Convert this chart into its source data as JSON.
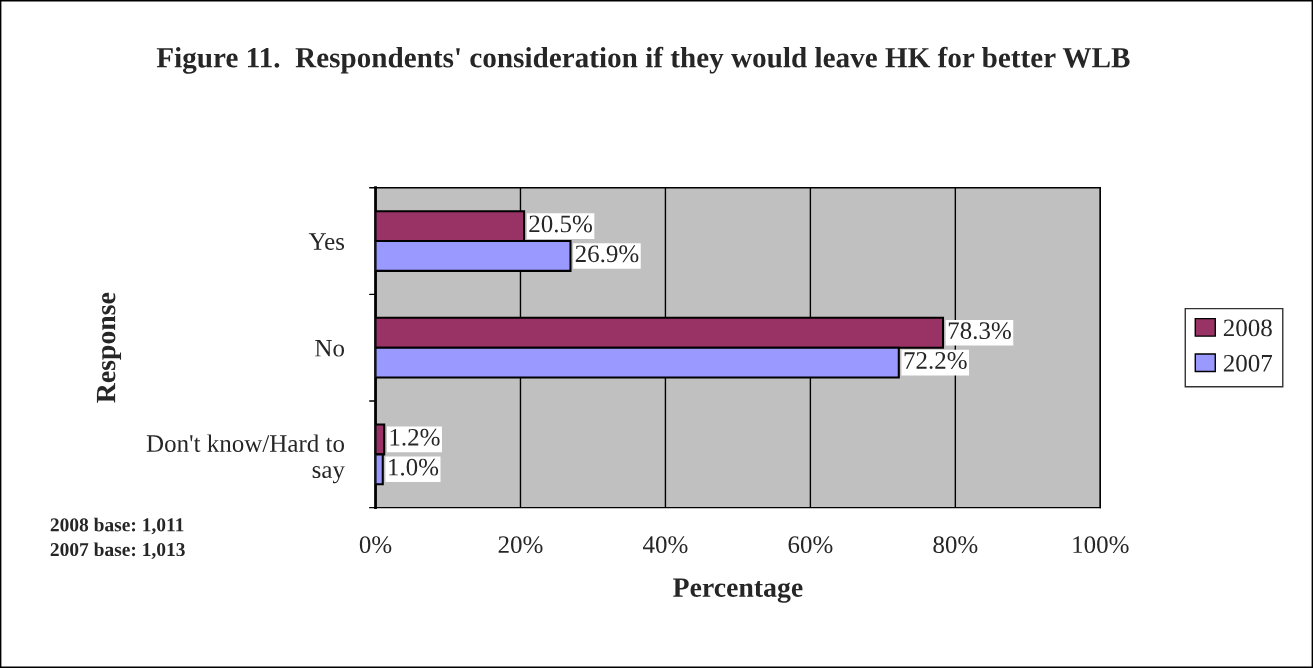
{
  "chart_data": {
    "type": "bar",
    "orientation": "horizontal",
    "title": "Figure 11.  Respondents' consideration if they would leave HK for better WLB",
    "xlabel": "Percentage",
    "ylabel": "Response",
    "categories": [
      "Yes",
      "No",
      "Don't know/Hard to say"
    ],
    "series": [
      {
        "name": "2008",
        "color": "#993366",
        "values": [
          20.5,
          78.3,
          1.2
        ],
        "value_labels": [
          "20.5%",
          "78.3%",
          "1.2%"
        ]
      },
      {
        "name": "2007",
        "color": "#9999ff",
        "values": [
          26.9,
          72.2,
          1.0
        ],
        "value_labels": [
          "26.9%",
          "72.2%",
          "1.0%"
        ]
      }
    ],
    "xlim": [
      0,
      100
    ],
    "xticks": [
      {
        "value": 0,
        "label": "0%"
      },
      {
        "value": 20,
        "label": "20%"
      },
      {
        "value": 40,
        "label": "40%"
      },
      {
        "value": 60,
        "label": "60%"
      },
      {
        "value": 80,
        "label": "80%"
      },
      {
        "value": 100,
        "label": "100%"
      }
    ],
    "grid": "x",
    "legend": "right",
    "annotations": [
      "2008 base: 1,011",
      "2007 base: 1,013"
    ]
  }
}
